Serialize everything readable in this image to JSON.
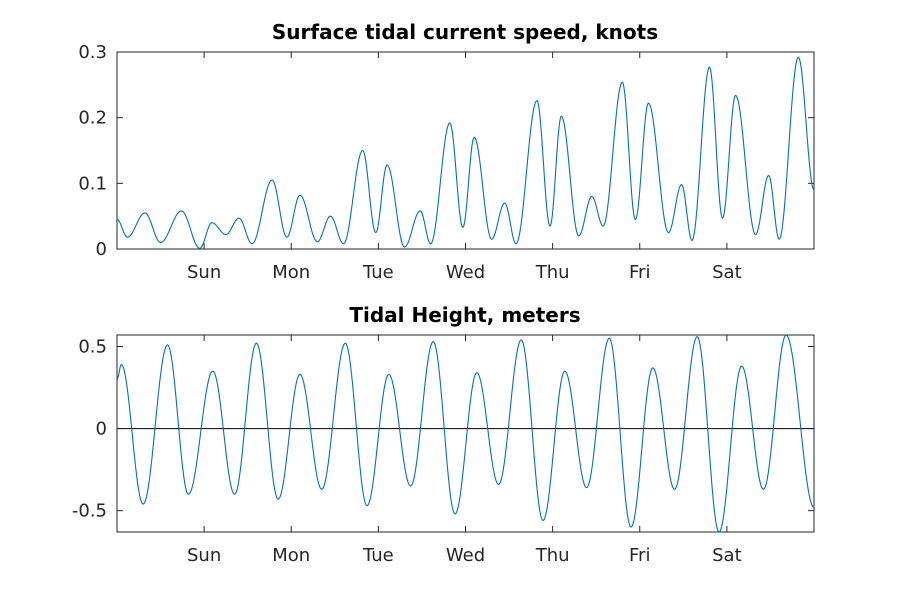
{
  "chart_data": [
    {
      "type": "line",
      "title": "Surface tidal current speed, knots",
      "xlabel": "",
      "ylabel": "",
      "x_tick_labels": [
        "Sun",
        "Mon",
        "Tue",
        "Wed",
        "Thu",
        "Fri",
        "Sat"
      ],
      "x_range_days": [
        0,
        8
      ],
      "x_tick_positions_days": [
        1,
        2,
        3,
        4,
        5,
        6,
        7
      ],
      "ylim": [
        0,
        0.3
      ],
      "yticks": [
        0,
        0.1,
        0.2,
        0.3
      ],
      "ytick_labels": [
        "0",
        "0.1",
        "0.2",
        "0.3"
      ],
      "series": [
        {
          "name": "current speed",
          "points_day_value": [
            [
              0.0,
              0.045
            ],
            [
              0.12,
              0.018
            ],
            [
              0.32,
              0.055
            ],
            [
              0.5,
              0.01
            ],
            [
              0.74,
              0.058
            ],
            [
              0.95,
              0.001
            ],
            [
              1.09,
              0.04
            ],
            [
              1.25,
              0.022
            ],
            [
              1.4,
              0.047
            ],
            [
              1.55,
              0.008
            ],
            [
              1.78,
              0.105
            ],
            [
              1.95,
              0.018
            ],
            [
              2.1,
              0.082
            ],
            [
              2.3,
              0.011
            ],
            [
              2.45,
              0.05
            ],
            [
              2.6,
              0.008
            ],
            [
              2.82,
              0.15
            ],
            [
              2.97,
              0.025
            ],
            [
              3.1,
              0.128
            ],
            [
              3.3,
              0.003
            ],
            [
              3.48,
              0.058
            ],
            [
              3.6,
              0.008
            ],
            [
              3.82,
              0.192
            ],
            [
              3.97,
              0.033
            ],
            [
              4.1,
              0.17
            ],
            [
              4.3,
              0.015
            ],
            [
              4.45,
              0.07
            ],
            [
              4.58,
              0.008
            ],
            [
              4.82,
              0.226
            ],
            [
              4.97,
              0.035
            ],
            [
              5.1,
              0.202
            ],
            [
              5.3,
              0.02
            ],
            [
              5.45,
              0.08
            ],
            [
              5.58,
              0.035
            ],
            [
              5.8,
              0.254
            ],
            [
              5.95,
              0.045
            ],
            [
              6.1,
              0.222
            ],
            [
              6.33,
              0.025
            ],
            [
              6.48,
              0.098
            ],
            [
              6.6,
              0.013
            ],
            [
              6.8,
              0.277
            ],
            [
              6.95,
              0.047
            ],
            [
              7.1,
              0.234
            ],
            [
              7.33,
              0.022
            ],
            [
              7.48,
              0.112
            ],
            [
              7.6,
              0.015
            ],
            [
              7.82,
              0.292
            ],
            [
              8.0,
              0.09
            ]
          ]
        }
      ]
    },
    {
      "type": "line",
      "title": "Tidal Height, meters",
      "xlabel": "",
      "ylabel": "",
      "x_tick_labels": [
        "Sun",
        "Mon",
        "Tue",
        "Wed",
        "Thu",
        "Fri",
        "Sat"
      ],
      "x_range_days": [
        0,
        8
      ],
      "x_tick_positions_days": [
        1,
        2,
        3,
        4,
        5,
        6,
        7
      ],
      "ylim": [
        -0.63,
        0.57
      ],
      "yticks": [
        -0.5,
        0,
        0.5
      ],
      "ytick_labels": [
        "-0.5",
        "0",
        "0.5"
      ],
      "reference_line_y": 0,
      "series": [
        {
          "name": "tidal height",
          "points_day_value": [
            [
              0.0,
              0.3
            ],
            [
              0.05,
              0.39
            ],
            [
              0.3,
              -0.46
            ],
            [
              0.58,
              0.51
            ],
            [
              0.82,
              -0.4
            ],
            [
              1.1,
              0.35
            ],
            [
              1.35,
              -0.4
            ],
            [
              1.6,
              0.52
            ],
            [
              1.85,
              -0.43
            ],
            [
              2.1,
              0.33
            ],
            [
              2.35,
              -0.37
            ],
            [
              2.62,
              0.52
            ],
            [
              2.87,
              -0.47
            ],
            [
              3.12,
              0.33
            ],
            [
              3.37,
              -0.35
            ],
            [
              3.63,
              0.53
            ],
            [
              3.88,
              -0.52
            ],
            [
              4.13,
              0.34
            ],
            [
              4.38,
              -0.34
            ],
            [
              4.64,
              0.54
            ],
            [
              4.89,
              -0.56
            ],
            [
              5.14,
              0.35
            ],
            [
              5.39,
              -0.36
            ],
            [
              5.65,
              0.55
            ],
            [
              5.9,
              -0.6
            ],
            [
              6.15,
              0.37
            ],
            [
              6.4,
              -0.37
            ],
            [
              6.66,
              0.56
            ],
            [
              6.91,
              -0.63
            ],
            [
              7.17,
              0.38
            ],
            [
              7.42,
              -0.37
            ],
            [
              7.68,
              0.57
            ],
            [
              8.0,
              -0.48
            ]
          ]
        }
      ]
    }
  ]
}
